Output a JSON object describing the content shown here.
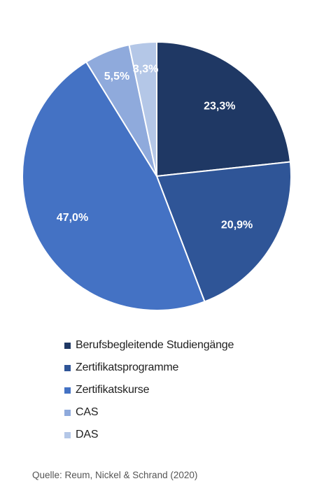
{
  "chart_data": {
    "type": "pie",
    "slices": [
      {
        "label": "Berufsbegleitende Studiengänge",
        "value": 23.3,
        "value_label": "23,3%",
        "color": "#1f3864",
        "label_color": "#ffffff"
      },
      {
        "label": "Zertifikatsprogramme",
        "value": 20.9,
        "value_label": "20,9%",
        "color": "#2f5597",
        "label_color": "#ffffff"
      },
      {
        "label": "Zertifikatskurse",
        "value": 47.0,
        "value_label": "47,0%",
        "color": "#4472c4",
        "label_color": "#ffffff"
      },
      {
        "label": "CAS",
        "value": 5.5,
        "value_label": "5,5%",
        "color": "#8faadc",
        "label_color": "#ffffff"
      },
      {
        "label": "DAS",
        "value": 3.3,
        "value_label": "3,3%",
        "color": "#b4c7e7",
        "label_color": "#ffffff"
      }
    ],
    "start": "12 o'clock",
    "direction": "clockwise",
    "legend_position": "bottom"
  },
  "source": "Quelle: Reum, Nickel & Schrand (2020)"
}
